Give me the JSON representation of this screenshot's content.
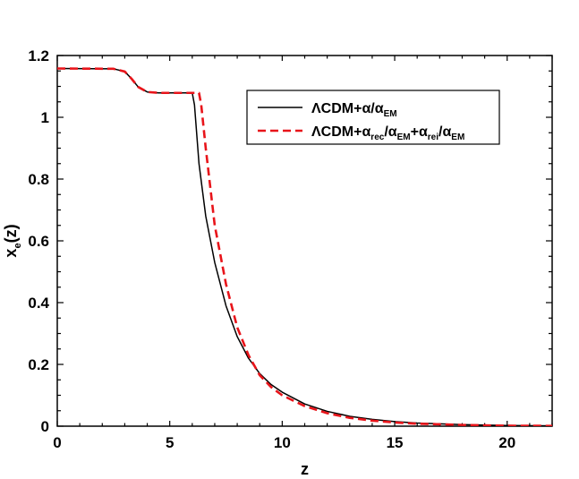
{
  "chart_data": {
    "type": "line",
    "xlabel": "z",
    "ylabel": "x",
    "ylabel_sub": "e",
    "ylabel_suffix": "(z)",
    "xlim": [
      0,
      22
    ],
    "ylim": [
      0,
      1.2
    ],
    "xticks": [
      0,
      5,
      10,
      15,
      20
    ],
    "yticks": [
      0,
      0.2,
      0.4,
      0.6,
      0.8,
      1,
      1.2
    ],
    "ytick_labels": [
      "0",
      "0.2",
      "0.4",
      "0.6",
      "0.8",
      "1",
      "1.2"
    ],
    "legend_position": "top-right",
    "series": [
      {
        "name": "ΛCDM+α/α_EM",
        "legend_parts": [
          {
            "text": "ΛCDM+α/α",
            "sub": false
          },
          {
            "text": "EM",
            "sub": true
          }
        ],
        "color": "#000000",
        "style": "solid",
        "x": [
          0,
          2.5,
          3.0,
          3.3,
          3.6,
          4.0,
          4.5,
          5.0,
          5.5,
          6.0,
          6.1,
          6.3,
          6.6,
          7.0,
          7.5,
          8.0,
          8.5,
          9.0,
          9.5,
          10.0,
          11.0,
          12.0,
          13.0,
          14.0,
          15.0,
          16.0,
          18.0,
          20.0,
          22.0
        ],
        "y": [
          1.158,
          1.157,
          1.148,
          1.125,
          1.098,
          1.082,
          1.079,
          1.079,
          1.079,
          1.079,
          1.04,
          0.85,
          0.68,
          0.53,
          0.39,
          0.29,
          0.22,
          0.17,
          0.135,
          0.11,
          0.072,
          0.048,
          0.032,
          0.022,
          0.015,
          0.01,
          0.005,
          0.002,
          0.001
        ]
      },
      {
        "name": "ΛCDM+α_rec/α_EM+α_rei/α_EM",
        "legend_parts": [
          {
            "text": "ΛCDM+α",
            "sub": false
          },
          {
            "text": "rec",
            "sub": true
          },
          {
            "text": "/α",
            "sub": false
          },
          {
            "text": "EM",
            "sub": true
          },
          {
            "text": "+α",
            "sub": false
          },
          {
            "text": "rei",
            "sub": true
          },
          {
            "text": "/α",
            "sub": false
          },
          {
            "text": "EM",
            "sub": true
          }
        ],
        "color": "#e8141a",
        "style": "dashed",
        "x": [
          0,
          2.5,
          3.0,
          3.3,
          3.6,
          4.0,
          4.5,
          5.0,
          5.5,
          6.0,
          6.3,
          6.4,
          6.6,
          7.0,
          7.5,
          8.0,
          8.5,
          9.0,
          9.5,
          10.0,
          11.0,
          12.0,
          13.0,
          14.0,
          15.0,
          16.0,
          18.0,
          20.0,
          22.0
        ],
        "y": [
          1.158,
          1.157,
          1.148,
          1.125,
          1.098,
          1.082,
          1.079,
          1.079,
          1.079,
          1.079,
          1.079,
          1.04,
          0.9,
          0.65,
          0.46,
          0.32,
          0.23,
          0.165,
          0.127,
          0.1,
          0.065,
          0.042,
          0.027,
          0.018,
          0.012,
          0.008,
          0.004,
          0.0015,
          0.001
        ]
      }
    ]
  }
}
